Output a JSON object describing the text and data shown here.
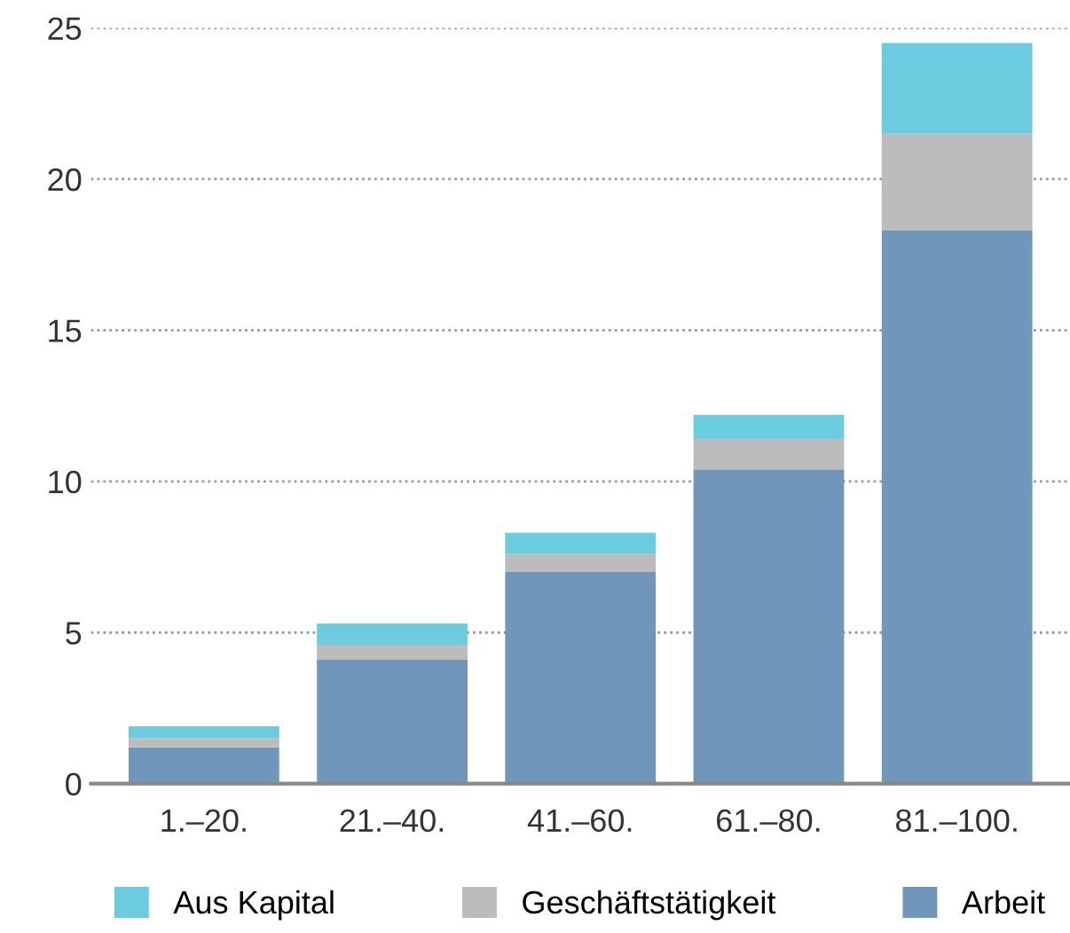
{
  "chart_data": {
    "type": "bar",
    "stacked": true,
    "categories": [
      "1.–20.",
      "21.–40.",
      "41.–60.",
      "61.–80.",
      "81.–100."
    ],
    "series": [
      {
        "name": "Arbeit",
        "color": "#7196bb",
        "values": [
          1.2,
          4.1,
          7.0,
          10.4,
          18.3
        ]
      },
      {
        "name": "Geschäftstätigkeit",
        "color": "#bcbcbc",
        "values": [
          0.3,
          0.5,
          0.6,
          1.0,
          3.2
        ]
      },
      {
        "name": "Aus Kapital",
        "color": "#6ccbdf",
        "values": [
          0.4,
          0.7,
          0.7,
          0.8,
          3.0
        ]
      }
    ],
    "ylim": [
      0,
      25
    ],
    "yticks": [
      0,
      5,
      10,
      15,
      20,
      25
    ],
    "grid": "y",
    "legend": "bottom"
  }
}
